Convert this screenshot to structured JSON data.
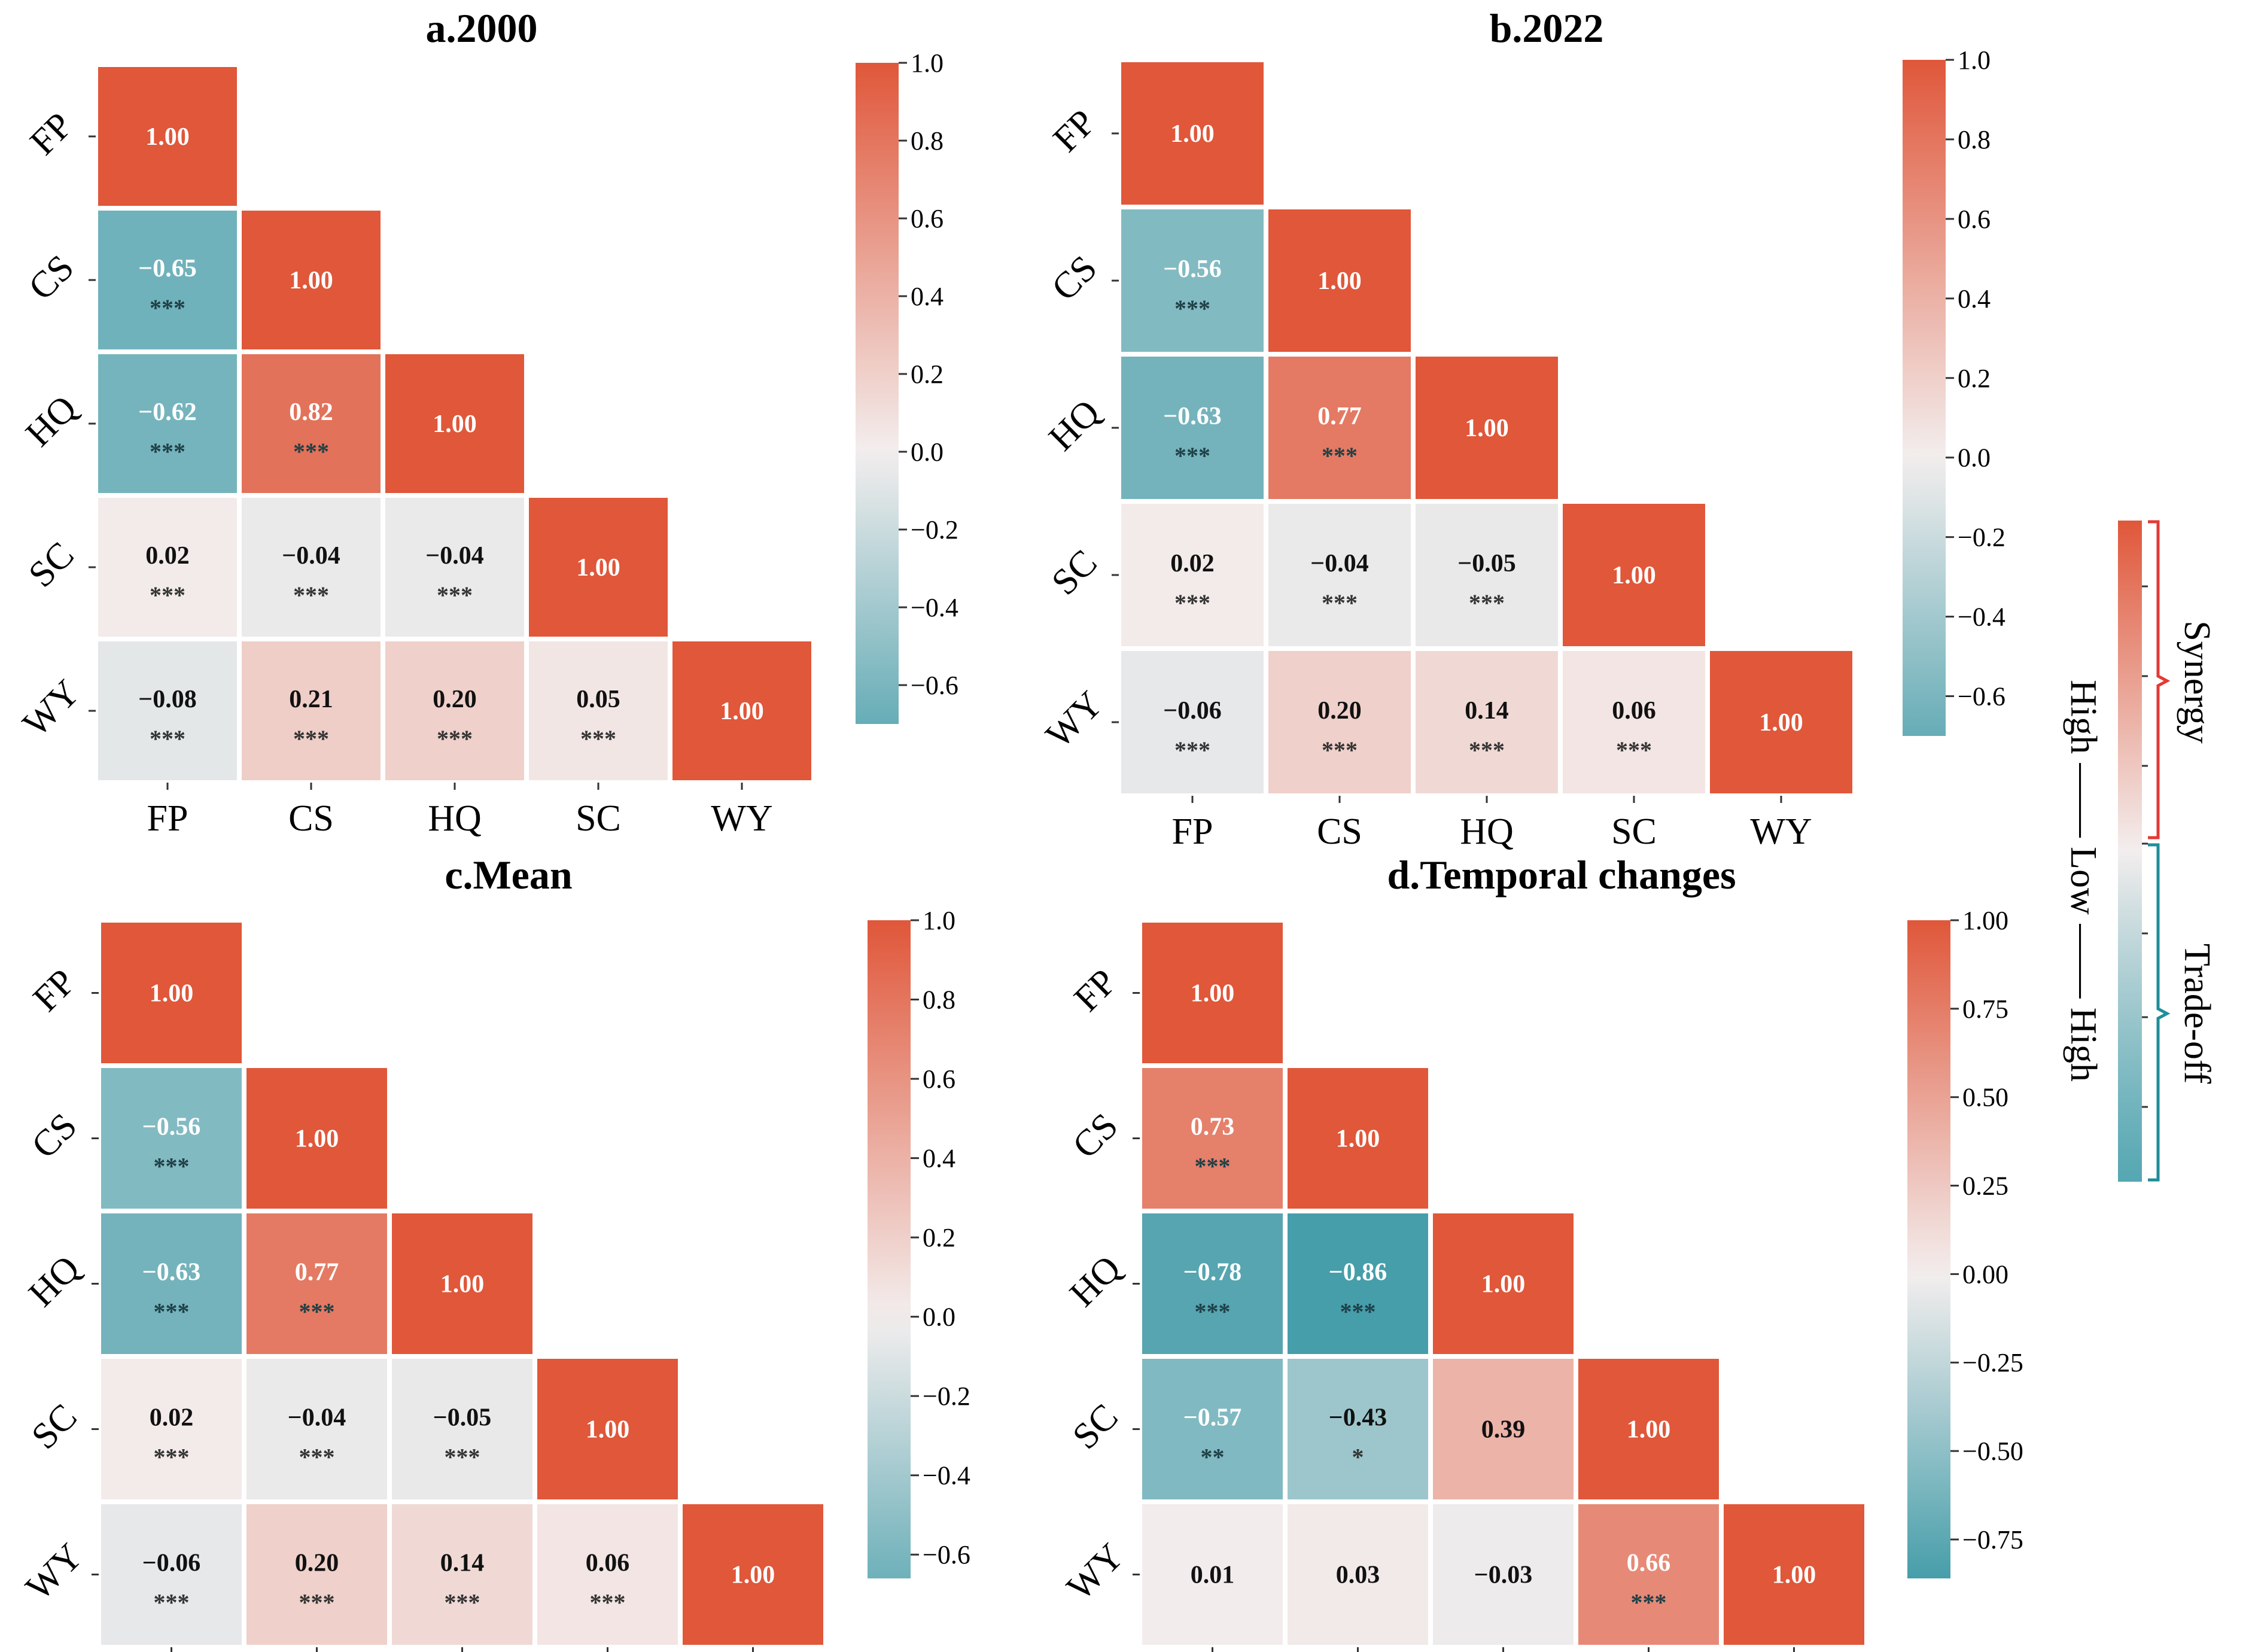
{
  "figure": {
    "legend": {
      "synergy_label": "Synergy",
      "tradeoff_label": "Trade-off",
      "intensity_label": "High —— Low —— High",
      "synergy_color": "#e53935",
      "tradeoff_color": "#1e8e99"
    }
  },
  "colors": {
    "positive": "#e0573a",
    "neutral": "#f3eeee",
    "negative": "#2a919f",
    "sig_text_dark": "#333333",
    "value_text_light": "#ffffff",
    "value_text_dark": "#111111"
  },
  "chart_data": [
    {
      "type": "heatmap",
      "title": "a.2000",
      "categories": [
        "FP",
        "CS",
        "HQ",
        "SC",
        "WY"
      ],
      "values": [
        [
          1.0
        ],
        [
          -0.65,
          1.0
        ],
        [
          -0.62,
          0.82,
          1.0
        ],
        [
          0.02,
          -0.04,
          -0.04,
          1.0
        ],
        [
          -0.08,
          0.21,
          0.2,
          0.05,
          1.0
        ]
      ],
      "significance": [
        [
          ""
        ],
        [
          "***",
          ""
        ],
        [
          "***",
          "***",
          ""
        ],
        [
          "***",
          "***",
          "***",
          ""
        ],
        [
          "***",
          "***",
          "***",
          "***",
          ""
        ]
      ],
      "colorbar": {
        "range": [
          -0.7,
          1.0
        ],
        "ticks": [
          1.0,
          0.8,
          0.6,
          0.4,
          0.2,
          0.0,
          -0.2,
          -0.4,
          -0.6
        ],
        "tick_labels": [
          "1.0",
          "0.8",
          "0.6",
          "0.4",
          "0.2",
          "0.0",
          "−0.2",
          "−0.4",
          "−0.6"
        ]
      }
    },
    {
      "type": "heatmap",
      "title": "b.2022",
      "categories": [
        "FP",
        "CS",
        "HQ",
        "SC",
        "WY"
      ],
      "values": [
        [
          1.0
        ],
        [
          -0.56,
          1.0
        ],
        [
          -0.63,
          0.77,
          1.0
        ],
        [
          0.02,
          -0.04,
          -0.05,
          1.0
        ],
        [
          -0.06,
          0.2,
          0.14,
          0.06,
          1.0
        ]
      ],
      "significance": [
        [
          ""
        ],
        [
          "***",
          ""
        ],
        [
          "***",
          "***",
          ""
        ],
        [
          "***",
          "***",
          "***",
          ""
        ],
        [
          "***",
          "***",
          "***",
          "***",
          ""
        ]
      ],
      "colorbar": {
        "range": [
          -0.7,
          1.0
        ],
        "ticks": [
          1.0,
          0.8,
          0.6,
          0.4,
          0.2,
          0.0,
          -0.2,
          -0.4,
          -0.6
        ],
        "tick_labels": [
          "1.0",
          "0.8",
          "0.6",
          "0.4",
          "0.2",
          "0.0",
          "−0.2",
          "−0.4",
          "−0.6"
        ]
      }
    },
    {
      "type": "heatmap",
      "title": "c.Mean",
      "categories": [
        "FP",
        "CS",
        "HQ",
        "SC",
        "WY"
      ],
      "values": [
        [
          1.0
        ],
        [
          -0.56,
          1.0
        ],
        [
          -0.63,
          0.77,
          1.0
        ],
        [
          0.02,
          -0.04,
          -0.05,
          1.0
        ],
        [
          -0.06,
          0.2,
          0.14,
          0.06,
          1.0
        ]
      ],
      "significance": [
        [
          ""
        ],
        [
          "***",
          ""
        ],
        [
          "***",
          "***",
          ""
        ],
        [
          "***",
          "***",
          "***",
          ""
        ],
        [
          "***",
          "***",
          "***",
          "***",
          ""
        ]
      ],
      "colorbar": {
        "range": [
          -0.66,
          1.0
        ],
        "ticks": [
          1.0,
          0.8,
          0.6,
          0.4,
          0.2,
          0.0,
          -0.2,
          -0.4,
          -0.6
        ],
        "tick_labels": [
          "1.0",
          "0.8",
          "0.6",
          "0.4",
          "0.2",
          "0.0",
          "−0.2",
          "−0.4",
          "−0.6"
        ]
      }
    },
    {
      "type": "heatmap",
      "title": "d.Temporal changes",
      "categories": [
        "FP",
        "CS",
        "HQ",
        "SC",
        "WY"
      ],
      "values": [
        [
          1.0
        ],
        [
          0.73,
          1.0
        ],
        [
          -0.78,
          -0.86,
          1.0
        ],
        [
          -0.57,
          -0.43,
          0.39,
          1.0
        ],
        [
          0.01,
          0.03,
          -0.03,
          0.66,
          1.0
        ]
      ],
      "significance": [
        [
          ""
        ],
        [
          "***",
          ""
        ],
        [
          "***",
          "***",
          ""
        ],
        [
          "**",
          "*",
          "",
          ""
        ],
        [
          "",
          "",
          "",
          "***",
          ""
        ]
      ],
      "colorbar": {
        "range": [
          -0.86,
          1.0
        ],
        "ticks": [
          1.0,
          0.75,
          0.5,
          0.25,
          0.0,
          -0.25,
          -0.5,
          -0.75
        ],
        "tick_labels": [
          "1.00",
          "0.75",
          "0.50",
          "0.25",
          "0.00",
          "−0.25",
          "−0.50",
          "−0.75"
        ]
      }
    }
  ]
}
